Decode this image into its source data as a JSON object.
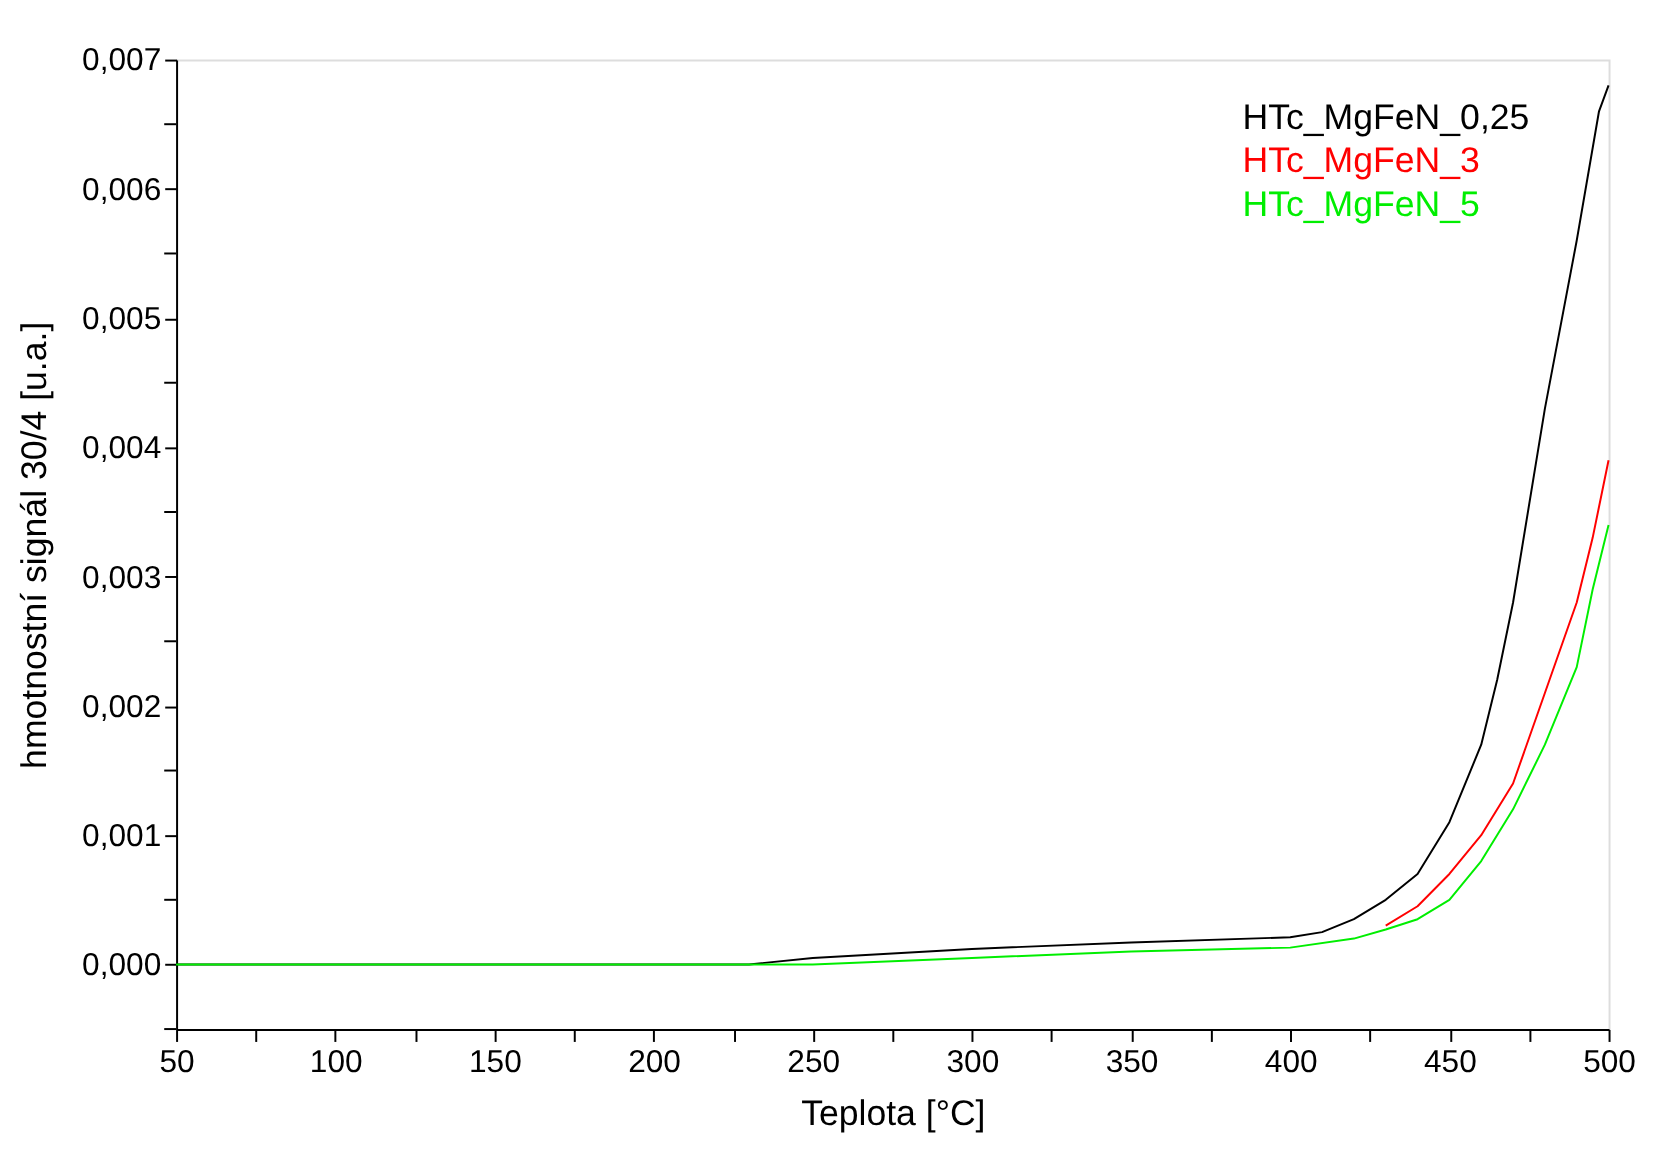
{
  "chart_data": {
    "type": "line",
    "xlabel": "Teplota [°C]",
    "ylabel": "hmotnostní signál 30/4 [u.a.]",
    "xlim": [
      50,
      500
    ],
    "ylim": [
      -0.0005,
      0.007
    ],
    "xticks": [
      50,
      {
        "value": 75,
        "label": null
      },
      100,
      {
        "value": 125,
        "label": null
      },
      150,
      {
        "value": 175,
        "label": null
      },
      200,
      {
        "value": 225,
        "label": null
      },
      250,
      {
        "value": 275,
        "label": null
      },
      300,
      {
        "value": 325,
        "label": null
      },
      350,
      {
        "value": 375,
        "label": null
      },
      400,
      {
        "value": 425,
        "label": null
      },
      450,
      {
        "value": 475,
        "label": null
      },
      500
    ],
    "yticks": [
      {
        "value": -0.0005,
        "label": null
      },
      {
        "value": 0,
        "label": "0,000"
      },
      {
        "value": 0.0005,
        "label": null
      },
      {
        "value": 0.001,
        "label": "0,001"
      },
      {
        "value": 0.0015,
        "label": null
      },
      {
        "value": 0.002,
        "label": "0,002"
      },
      {
        "value": 0.0025,
        "label": null
      },
      {
        "value": 0.003,
        "label": "0,003"
      },
      {
        "value": 0.0035,
        "label": null
      },
      {
        "value": 0.004,
        "label": "0,004"
      },
      {
        "value": 0.0045,
        "label": null
      },
      {
        "value": 0.005,
        "label": "0,005"
      },
      {
        "value": 0.0055,
        "label": null
      },
      {
        "value": 0.006,
        "label": "0,006"
      },
      {
        "value": 0.0065,
        "label": null
      },
      {
        "value": 0.007,
        "label": "0,007"
      }
    ],
    "grid": false,
    "legend": "top right",
    "marker": "none",
    "line_style": "solid",
    "series": [
      {
        "name": "HTc_MgFeN_0,25",
        "color": "#000000",
        "x": [
          50,
          230,
          250,
          300,
          350,
          400,
          410,
          420,
          430,
          440,
          450,
          460,
          465,
          470,
          480,
          490,
          497,
          500
        ],
        "values": [
          0,
          0,
          5e-05,
          0.00012,
          0.00017,
          0.00021,
          0.00025,
          0.00035,
          0.0005,
          0.0007,
          0.0011,
          0.0017,
          0.0022,
          0.0028,
          0.0043,
          0.0056,
          0.0066,
          0.0068
        ]
      },
      {
        "name": "HTc_MgFeN_3",
        "color": "#ff0000",
        "x": [
          430,
          440,
          450,
          460,
          470,
          480,
          490,
          495,
          500
        ],
        "values": [
          0.0003,
          0.00045,
          0.0007,
          0.001,
          0.0014,
          0.0021,
          0.0028,
          0.0033,
          0.0039
        ]
      },
      {
        "name": "HTc_MgFeN_5",
        "color": "#00ee00",
        "x": [
          50,
          250,
          300,
          350,
          400,
          420,
          430,
          440,
          450,
          460,
          470,
          480,
          490,
          495,
          500
        ],
        "values": [
          0,
          0,
          5e-05,
          0.0001,
          0.00013,
          0.0002,
          0.00027,
          0.00035,
          0.0005,
          0.0008,
          0.0012,
          0.0017,
          0.0023,
          0.0029,
          0.0034
        ]
      }
    ]
  }
}
